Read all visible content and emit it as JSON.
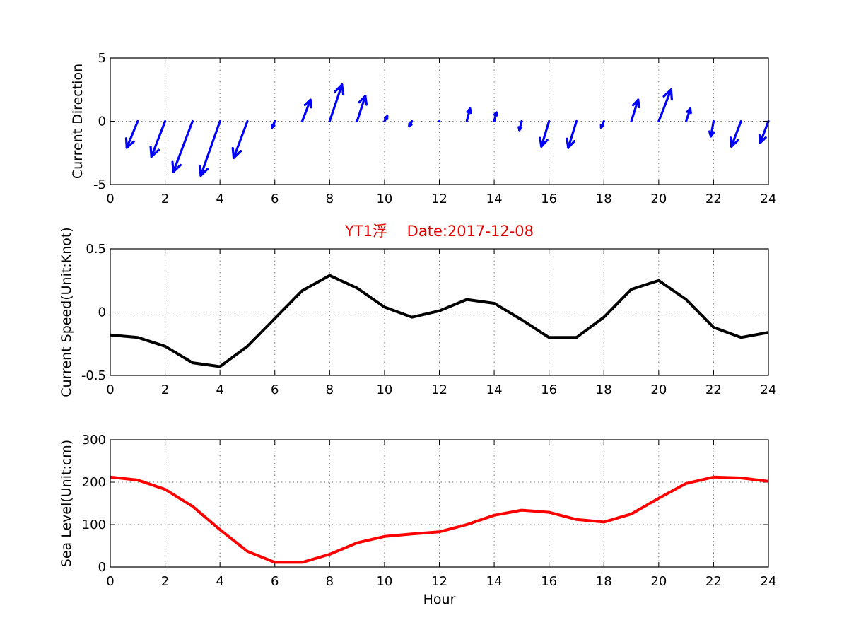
{
  "chart_data": [
    {
      "type": "quiver",
      "ylabel": "Current Direction",
      "xlim": [
        0,
        24
      ],
      "ylim": [
        -5,
        5
      ],
      "xticks": [
        0,
        2,
        4,
        6,
        8,
        10,
        12,
        14,
        16,
        18,
        20,
        22,
        24
      ],
      "yticks": [
        -5,
        0,
        5
      ],
      "grid": true,
      "color": "#0000ff",
      "x": [
        1,
        2,
        3,
        4,
        5,
        6,
        7,
        8,
        9,
        10,
        11,
        12,
        13,
        14,
        15,
        16,
        17,
        18,
        19,
        20,
        21,
        22,
        23,
        24
      ],
      "u": [
        -0.4,
        -0.5,
        -0.7,
        -0.7,
        -0.5,
        -0.1,
        0.3,
        0.45,
        0.3,
        0.1,
        -0.1,
        0.0,
        0.12,
        0.08,
        -0.08,
        -0.28,
        -0.3,
        -0.1,
        0.25,
        0.45,
        0.15,
        -0.1,
        -0.35,
        -0.3
      ],
      "v": [
        -2.1,
        -2.8,
        -4.0,
        -4.3,
        -2.9,
        -0.5,
        1.7,
        2.9,
        2.0,
        0.4,
        -0.4,
        0.0,
        1.0,
        0.7,
        -0.7,
        -2.0,
        -2.1,
        -0.5,
        1.7,
        2.5,
        1.0,
        -1.2,
        -2.0,
        -1.7
      ]
    },
    {
      "type": "line",
      "title": "YT1浮　 Date:2017-12-08",
      "ylabel": "Current Speed(Unit:Knot)",
      "xlim": [
        0,
        24
      ],
      "ylim": [
        -0.5,
        0.5
      ],
      "xticks": [
        0,
        2,
        4,
        6,
        8,
        10,
        12,
        14,
        16,
        18,
        20,
        22,
        24
      ],
      "yticks": [
        -0.5,
        0,
        0.5
      ],
      "grid": true,
      "color": "#000000",
      "x": [
        0,
        1,
        2,
        3,
        4,
        5,
        6,
        7,
        8,
        9,
        10,
        11,
        12,
        13,
        14,
        15,
        16,
        17,
        18,
        19,
        20,
        21,
        22,
        23,
        24
      ],
      "y": [
        -0.18,
        -0.2,
        -0.27,
        -0.4,
        -0.43,
        -0.27,
        -0.05,
        0.17,
        0.29,
        0.19,
        0.04,
        -0.04,
        0.01,
        0.1,
        0.07,
        -0.06,
        -0.2,
        -0.2,
        -0.04,
        0.18,
        0.25,
        0.1,
        -0.12,
        -0.2,
        -0.16
      ]
    },
    {
      "type": "line",
      "xlabel": "Hour",
      "ylabel": "Sea Level(Unit:cm)",
      "xlim": [
        0,
        24
      ],
      "ylim": [
        0,
        300
      ],
      "xticks": [
        0,
        2,
        4,
        6,
        8,
        10,
        12,
        14,
        16,
        18,
        20,
        22,
        24
      ],
      "yticks": [
        0,
        100,
        200,
        300
      ],
      "grid": true,
      "color": "#ff0000",
      "x": [
        0,
        1,
        2,
        3,
        4,
        5,
        6,
        7,
        8,
        9,
        10,
        11,
        12,
        13,
        14,
        15,
        16,
        17,
        18,
        19,
        20,
        21,
        22,
        23,
        24
      ],
      "y": [
        212,
        205,
        183,
        143,
        88,
        37,
        11,
        11,
        30,
        57,
        72,
        78,
        83,
        100,
        122,
        134,
        129,
        112,
        106,
        125,
        162,
        197,
        212,
        210,
        202
      ]
    }
  ]
}
